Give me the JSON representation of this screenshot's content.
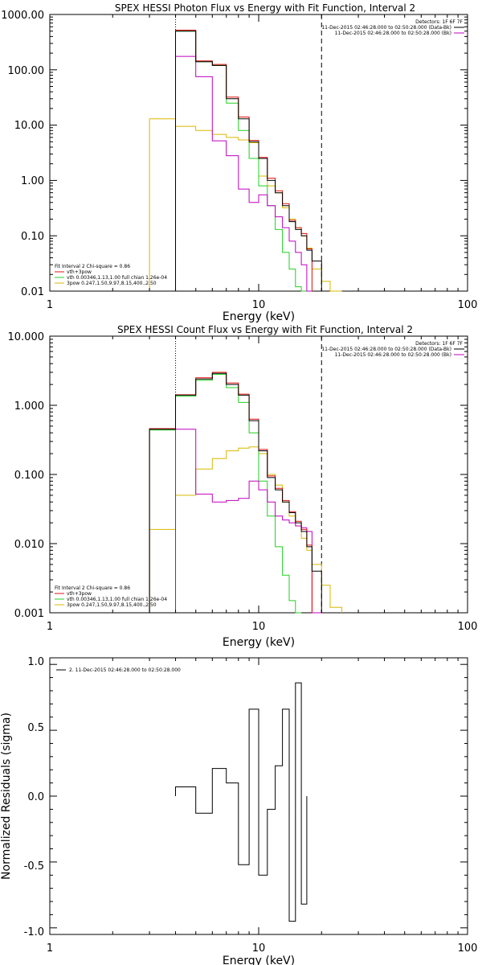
{
  "chart_data": [
    {
      "type": "line",
      "title": "SPEX HESSI Photon Flux vs Energy with Fit Function, Interval 2",
      "xlabel": "Energy (keV)",
      "ylabel": "",
      "xscale": "log",
      "yscale": "log",
      "xlim": [
        1,
        100
      ],
      "ylim": [
        0.01,
        1000
      ],
      "x_tick_labels": [
        "1",
        "10",
        "100"
      ],
      "y_tick_labels": [
        "0.01",
        "0.10",
        "1.00",
        "10.00",
        "100.00",
        "1000.00"
      ],
      "header_lines": [
        "Detectors: 1F 6F 7F",
        "11-Dec-2015 02:46:28.000 to 02:50:28.000 (Data-Bk)",
        "11-Dec-2015 02:46:28.000 to 02:50:28.000 (Bk)"
      ],
      "legend_placement": "bottom-left",
      "legend_lines": [
        "Fit Interval 2   Chi-square = 0.86",
        "vth+3pow",
        "vth 0.00346,1.13,1.00  full chian 1.26e-04",
        "3pow 0.247,1.50,9.97,8.15,400.,2.50"
      ],
      "markers": {
        "dotted_x": 4.0,
        "dashed_x": 20.0
      },
      "bin_edges": [
        3,
        4,
        5,
        6,
        7,
        8,
        9,
        10,
        11,
        12,
        13,
        14,
        15,
        16,
        17,
        18,
        20,
        22,
        25
      ],
      "series": [
        {
          "name": "",
          "color": "#000000",
          "values": [
            null,
            500,
            140,
            120,
            30,
            13,
            5,
            2.5,
            1.0,
            0.6,
            0.35,
            0.18,
            0.13,
            0.1,
            0.055,
            0.035,
            null,
            null
          ]
        },
        {
          "name": "vth+3pow",
          "color": "#e01010",
          "values": [
            null,
            520,
            145,
            125,
            32,
            14,
            5.3,
            2.6,
            1.1,
            0.65,
            0.38,
            0.19,
            0.14,
            0.11,
            0.058,
            null,
            null,
            null
          ]
        },
        {
          "name": "vth",
          "color": "#20d020",
          "values": [
            null,
            500,
            140,
            120,
            25,
            8,
            2.5,
            0.8,
            0.35,
            0.13,
            0.05,
            0.025,
            0.012,
            0.006,
            null,
            null,
            null,
            null
          ]
        },
        {
          "name": "3pow",
          "color": "#d8b800",
          "values": [
            13,
            9.5,
            8,
            6.8,
            6,
            5.4,
            4.8,
            1.2,
            0.8,
            0.6,
            0.32,
            0.2,
            0.14,
            0.1,
            0.06,
            0.025,
            0.015,
            0.01
          ]
        },
        {
          "name": "",
          "color": "#c000c0",
          "values": [
            null,
            175,
            75,
            5.2,
            2.8,
            0.7,
            0.4,
            0.55,
            0.35,
            0.22,
            0.14,
            0.08,
            0.05,
            0.03,
            0.001,
            null,
            null,
            null
          ]
        }
      ]
    },
    {
      "type": "line",
      "title": "SPEX HESSI Count Flux vs Energy with Fit Function, Interval 2",
      "xlabel": "Energy (keV)",
      "ylabel": "",
      "xscale": "log",
      "yscale": "log",
      "xlim": [
        1,
        100
      ],
      "ylim": [
        0.001,
        10
      ],
      "x_tick_labels": [
        "1",
        "10",
        "100"
      ],
      "y_tick_labels": [
        "0.001",
        "0.010",
        "0.100",
        "1.000",
        "10.000"
      ],
      "header_lines": [
        "Detectors: 1F 6F 7F",
        "11-Dec-2015 02:46:28.000 to 02:50:28.000 (Data-Bk)",
        "11-Dec-2015 02:46:28.000 to 02:50:28.000 (Bk)"
      ],
      "legend_placement": "bottom-left",
      "legend_lines": [
        "Fit Interval 2   Chi-square = 0.86",
        "vth+3pow",
        "vth 0.00346,1.13,1.00  full chian 1.26e-04",
        "3pow 0.247,1.50,9.97,8.15,400.,2.50"
      ],
      "markers": {
        "dotted_x": 4.0,
        "dashed_x": 20.0
      },
      "bin_edges": [
        3,
        4,
        5,
        6,
        7,
        8,
        9,
        10,
        11,
        12,
        13,
        14,
        15,
        16,
        17,
        18,
        20,
        22,
        25
      ],
      "series": [
        {
          "name": "",
          "color": "#000000",
          "values": [
            0.45,
            1.4,
            2.4,
            2.9,
            2.0,
            1.4,
            0.6,
            0.22,
            0.09,
            0.06,
            0.04,
            0.028,
            0.02,
            0.015,
            0.009,
            0.004,
            null,
            null
          ]
        },
        {
          "name": "vth+3pow",
          "color": "#e01010",
          "values": [
            0.46,
            1.42,
            2.5,
            3.0,
            2.1,
            1.45,
            0.63,
            0.23,
            0.095,
            0.063,
            0.042,
            0.029,
            0.021,
            0.016,
            0.0095,
            null,
            null,
            null
          ]
        },
        {
          "name": "vth",
          "color": "#20d020",
          "values": [
            0.44,
            1.35,
            2.3,
            2.8,
            1.8,
            1.1,
            0.4,
            0.08,
            0.025,
            0.009,
            0.0035,
            0.0015,
            0.0005,
            null,
            null,
            null,
            null,
            null
          ]
        },
        {
          "name": "3pow",
          "color": "#d8b800",
          "values": [
            0.016,
            0.05,
            0.12,
            0.17,
            0.22,
            0.24,
            0.25,
            0.2,
            0.1,
            0.07,
            0.04,
            0.025,
            0.018,
            0.012,
            0.008,
            0.005,
            0.0025,
            0.0012
          ]
        },
        {
          "name": "",
          "color": "#c000c0",
          "values": [
            null,
            0.45,
            0.052,
            0.04,
            0.042,
            0.045,
            0.08,
            0.06,
            0.04,
            0.025,
            0.022,
            0.02,
            0.018,
            0.017,
            0.015,
            0.0008,
            null,
            null
          ]
        }
      ]
    },
    {
      "type": "line",
      "title": "",
      "xlabel": "Energy (keV)",
      "ylabel": "Normalized Residuals (sigma)",
      "xscale": "log",
      "yscale": "linear",
      "xlim": [
        1,
        100
      ],
      "ylim": [
        -1.05,
        1.05
      ],
      "x_tick_labels": [
        "1",
        "10",
        "100"
      ],
      "y_tick_labels": [
        "-1.0",
        "-0.5",
        "0.0",
        "0.5",
        "1.0"
      ],
      "y_ticks": [
        -1.0,
        -0.5,
        0.0,
        0.5,
        1.0
      ],
      "legend_placement": "top-left",
      "legend_lines": [
        "2. 11-Dec-2015 02:46:28.000 to 02:50:28.000"
      ],
      "bin_edges": [
        4,
        5,
        6,
        7,
        8,
        9,
        10,
        11,
        12,
        13,
        14,
        15,
        16,
        17,
        18,
        20
      ],
      "series": [
        {
          "name": "2. 11-Dec-2015 02:46:28.000 to 02:50:28.000",
          "color": "#000000",
          "values": [
            0.07,
            -0.13,
            0.21,
            0.1,
            -0.52,
            0.66,
            -0.6,
            -0.1,
            0.23,
            0.66,
            -0.95,
            0.86,
            -0.82,
            null,
            null
          ]
        }
      ]
    }
  ]
}
